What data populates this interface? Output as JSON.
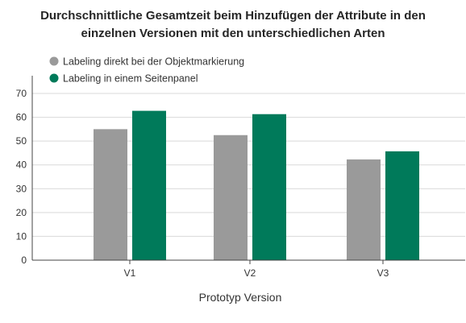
{
  "chart_data": {
    "type": "bar",
    "title_lines": [
      "Durchschnittliche Gesamtzeit beim Hinzufügen der Attribute in den",
      "einzelnen Versionen mit den unterschiedlichen Arten"
    ],
    "xlabel": "Prototyp Version",
    "ylabel": "",
    "categories": [
      "V1",
      "V2",
      "V3"
    ],
    "series": [
      {
        "name": "Labeling direkt bei der Objektmarkierung",
        "values": [
          55,
          52.5,
          42.3
        ],
        "color": "#9a9a9a"
      },
      {
        "name": "Labeling in einem Seitenpanel",
        "values": [
          62.7,
          61.3,
          45.7
        ],
        "color": "#007a5a"
      }
    ],
    "yticks": [
      0,
      10,
      20,
      30,
      40,
      50,
      60,
      70
    ],
    "ylim": [
      0,
      75
    ],
    "grid": true,
    "legend": "top-left"
  }
}
